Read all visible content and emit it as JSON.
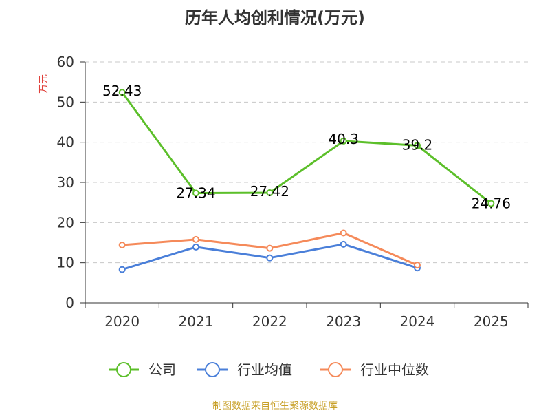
{
  "chart_data": {
    "type": "line",
    "title": "历年人均创利情况(万元)",
    "ylabel": "万元",
    "categories": [
      "2020",
      "2021",
      "2022",
      "2023",
      "2024",
      "2025"
    ],
    "ylim": [
      0,
      60
    ],
    "yticks": [
      0,
      10,
      20,
      30,
      40,
      50,
      60
    ],
    "grid": true,
    "legend_position": "bottom",
    "series": [
      {
        "name": "公司",
        "color": "#5cbf2a",
        "values": [
          52.43,
          27.34,
          27.42,
          40.3,
          39.2,
          24.76
        ],
        "labels": [
          "52.43",
          "27.34",
          "27.42",
          "40.3",
          "39.2",
          "24.76"
        ]
      },
      {
        "name": "行业均值",
        "color": "#4a7fd9",
        "values": [
          8.3,
          13.9,
          11.2,
          14.6,
          8.7,
          null
        ]
      },
      {
        "name": "行业中位数",
        "color": "#f58a5a",
        "values": [
          14.4,
          15.8,
          13.6,
          17.4,
          9.4,
          null
        ]
      }
    ]
  },
  "source": "制图数据来自恒生聚源数据库"
}
